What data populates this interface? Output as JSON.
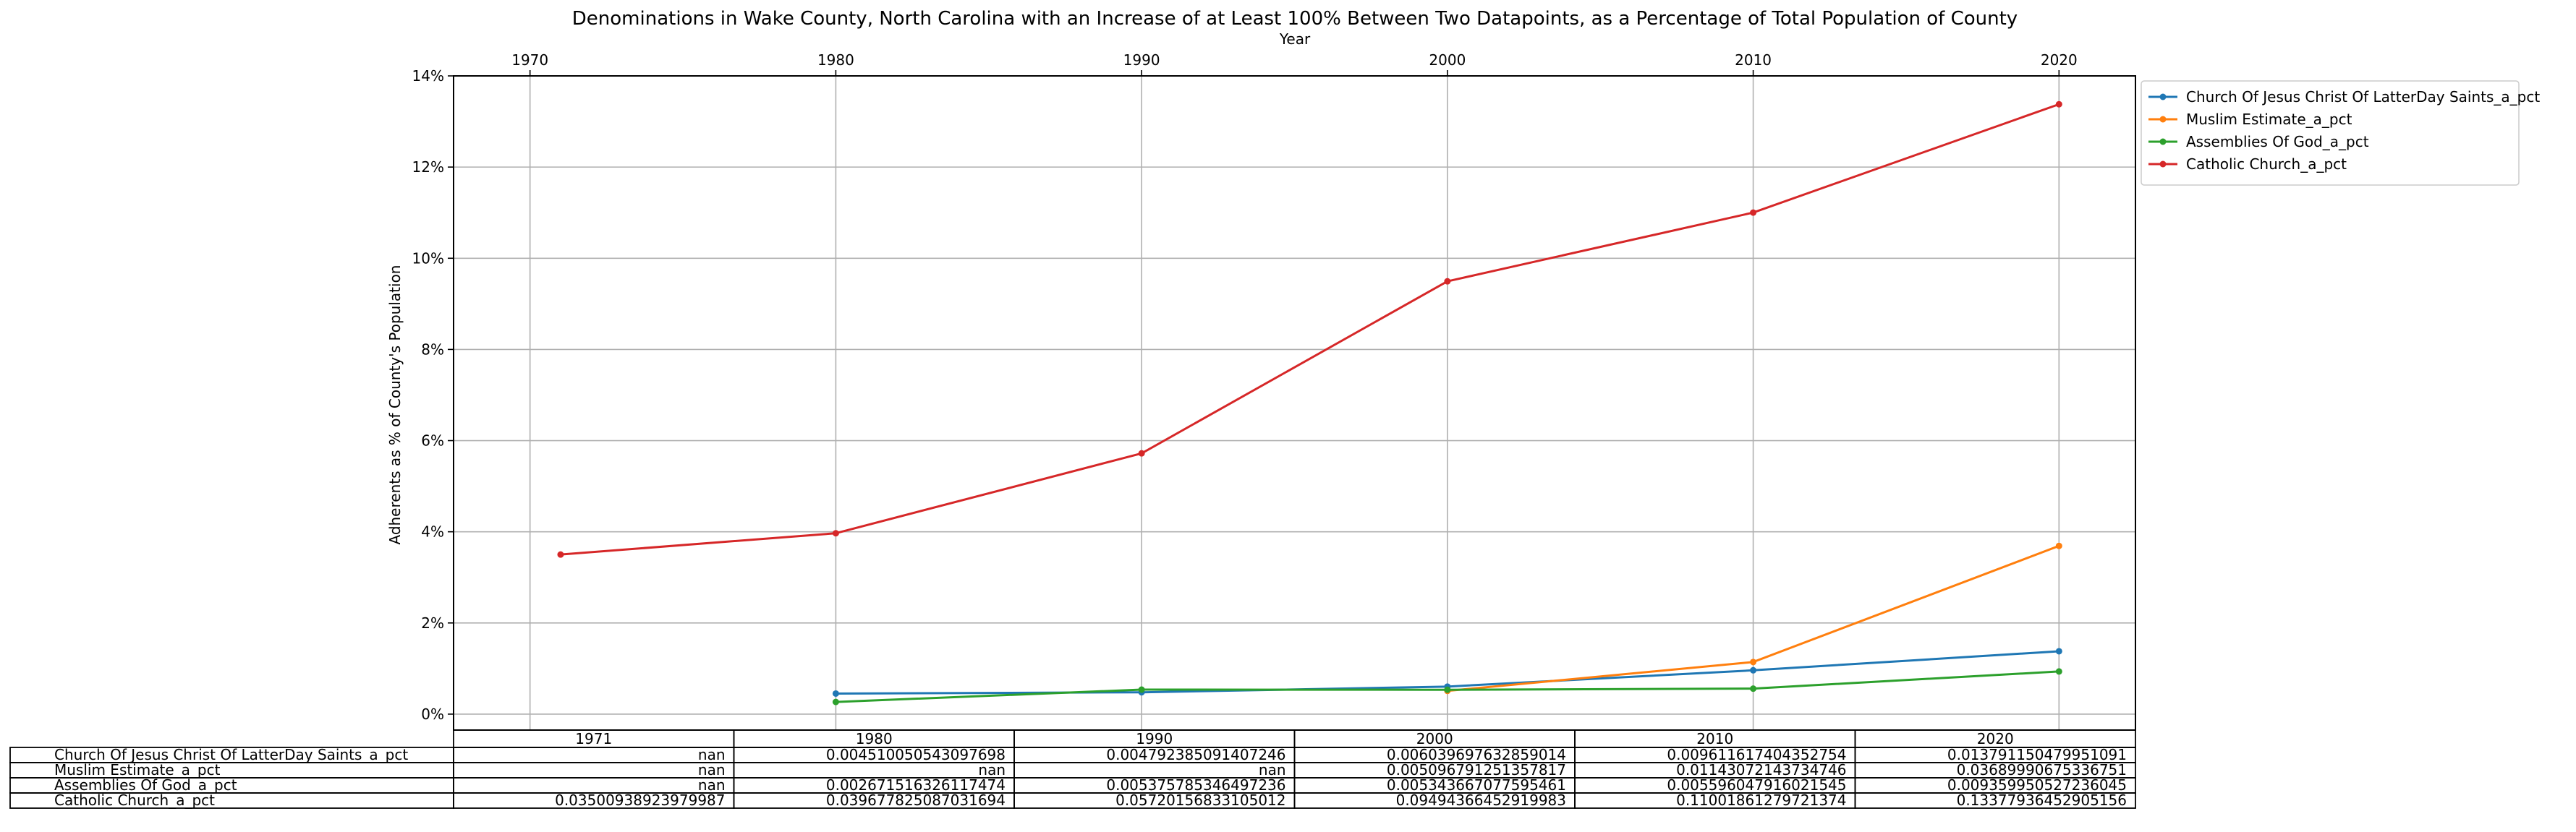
{
  "chart_data": {
    "type": "line",
    "title": "Denominations in Wake County, North Carolina with an Increase of at Least 100% Between Two Datapoints, as a Percentage of Total Population of County",
    "xlabel": "Year",
    "ylabel": "Adherents as % of County's Population",
    "x_ticks": [
      "1970",
      "1980",
      "1990",
      "2000",
      "2010",
      "2020"
    ],
    "y_ticks": [
      "0%",
      "2%",
      "4%",
      "6%",
      "8%",
      "10%",
      "12%",
      "14%"
    ],
    "xlim": [
      1967.5,
      2022.5
    ],
    "ylim": [
      -0.0035,
      0.14
    ],
    "grid": true,
    "legend_position": "upper left, outside right",
    "x": [
      1971,
      1980,
      1990,
      2000,
      2010,
      2020
    ],
    "series": [
      {
        "name": "Church Of Jesus Christ Of LatterDay Saints_a_pct",
        "color": "#1f77b4",
        "values": [
          null,
          0.004510050543097698,
          0.004792385091407246,
          0.006039697632859014,
          0.009611617404352754,
          0.013791150479951091
        ],
        "table": [
          "nan",
          "0.004510050543097698",
          "0.004792385091407246",
          "0.006039697632859014",
          "0.009611617404352754",
          "0.013791150479951091"
        ]
      },
      {
        "name": "Muslim Estimate_a_pct",
        "color": "#ff7f0e",
        "values": [
          null,
          null,
          null,
          0.005096791251357817,
          0.01143072143734746,
          0.03689990675336751
        ],
        "table": [
          "nan",
          "nan",
          "nan",
          "0.005096791251357817",
          "0.01143072143734746",
          "0.03689990675336751"
        ]
      },
      {
        "name": "Assemblies Of God_a_pct",
        "color": "#2ca02c",
        "values": [
          null,
          0.002671516326117474,
          0.005375785346497236,
          0.005343667077595461,
          0.005596047916021545,
          0.009359950527236045
        ],
        "table": [
          "nan",
          "0.002671516326117474",
          "0.005375785346497236",
          "0.005343667077595461",
          "0.005596047916021545",
          "0.009359950527236045"
        ]
      },
      {
        "name": "Catholic Church_a_pct",
        "color": "#d62728",
        "values": [
          0.03500938923979987,
          0.039677825087031694,
          0.05720156833105012,
          0.09494366452919983,
          0.11001861279721374,
          0.13377936452905156
        ],
        "table": [
          "0.03500938923979987",
          "0.039677825087031694",
          "0.05720156833105012",
          "0.09494366452919983",
          "0.11001861279721374",
          "0.13377936452905156"
        ]
      }
    ],
    "table_columns": [
      "1971",
      "1980",
      "1990",
      "2000",
      "2010",
      "2020"
    ]
  }
}
